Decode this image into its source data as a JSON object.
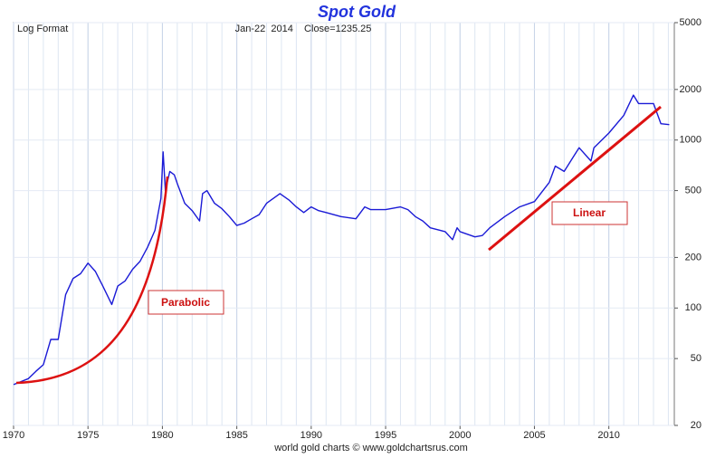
{
  "chart_data": {
    "type": "line",
    "title": "Spot Gold",
    "annotations": [
      "Log Format",
      "Jan-22  2014    Close=1235.25",
      "world gold charts © www.goldchartsrus.com",
      "Parabolic",
      "Linear"
    ],
    "log_scale": true,
    "grid": true,
    "xlim": [
      1970,
      2014.4
    ],
    "xticks": [
      1970,
      1975,
      1980,
      1985,
      1990,
      1995,
      2000,
      2005,
      2010
    ],
    "ylim": [
      20,
      5000
    ],
    "yticks": [
      20,
      50,
      100,
      200,
      500,
      1000,
      2000,
      5000
    ],
    "x": [
      1970.0,
      1971.0,
      1971.5,
      1972.0,
      1972.5,
      1973.0,
      1973.5,
      1974.0,
      1974.5,
      1975.0,
      1975.5,
      1976.0,
      1976.6,
      1977.0,
      1977.5,
      1978.0,
      1978.5,
      1979.0,
      1979.5,
      1979.9,
      1980.05,
      1980.2,
      1980.5,
      1980.8,
      1981.0,
      1981.5,
      1982.0,
      1982.5,
      1982.7,
      1983.0,
      1983.5,
      1984.0,
      1984.5,
      1985.0,
      1985.5,
      1986.0,
      1986.5,
      1987.0,
      1987.9,
      1988.5,
      1989.0,
      1989.5,
      1990.0,
      1990.5,
      1991.0,
      1992.0,
      1993.0,
      1993.6,
      1994.0,
      1995.0,
      1996.0,
      1996.5,
      1997.0,
      1997.5,
      1998.0,
      1999.0,
      1999.5,
      1999.8,
      2000.0,
      2001.0,
      2001.5,
      2002.0,
      2003.0,
      2004.0,
      2005.0,
      2006.0,
      2006.4,
      2007.0,
      2008.0,
      2008.8,
      2009.0,
      2010.0,
      2011.0,
      2011.65,
      2012.0,
      2013.0,
      2013.5,
      2014.06
    ],
    "series": [
      {
        "name": "Spot Gold",
        "color": "#1a1ad6",
        "values": [
          35,
          38,
          42,
          46,
          65,
          65,
          120,
          150,
          160,
          185,
          165,
          135,
          105,
          135,
          145,
          170,
          190,
          230,
          290,
          450,
          850,
          500,
          650,
          620,
          550,
          420,
          380,
          330,
          480,
          500,
          420,
          390,
          350,
          310,
          320,
          340,
          360,
          420,
          480,
          440,
          400,
          370,
          400,
          380,
          370,
          350,
          340,
          400,
          385,
          385,
          400,
          385,
          350,
          330,
          300,
          285,
          255,
          300,
          285,
          265,
          270,
          300,
          350,
          400,
          430,
          560,
          700,
          650,
          900,
          750,
          900,
          1100,
          1400,
          1850,
          1650,
          1650,
          1250,
          1235.25
        ]
      }
    ]
  }
}
